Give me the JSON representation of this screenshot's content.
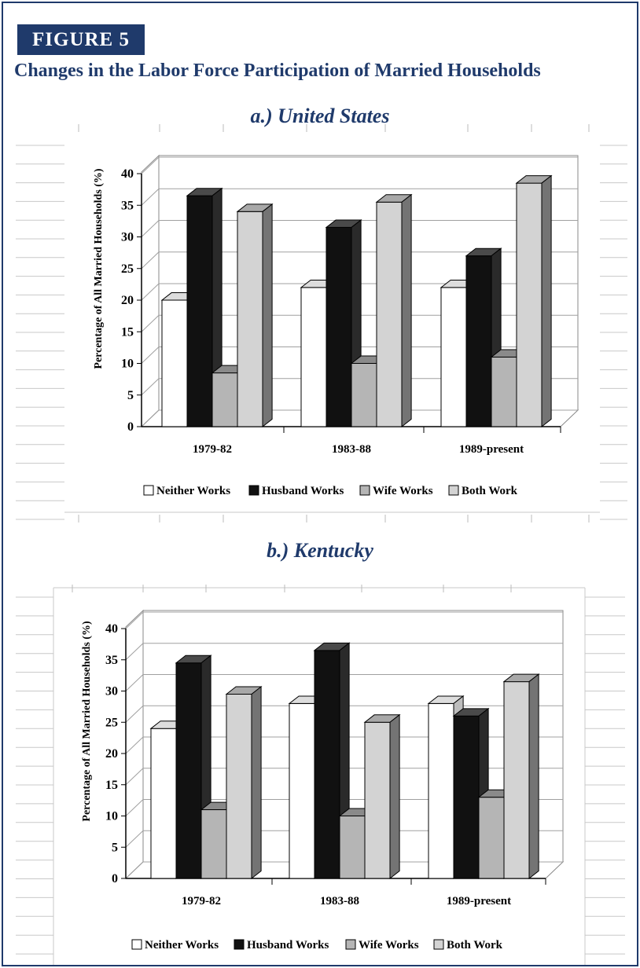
{
  "figure_label": "FIGURE 5",
  "main_title": "Changes in the Labor Force Participation of Married Households",
  "colors": {
    "navy": "#1f3a6b",
    "neither": "#ffffff",
    "husband": "#111111",
    "wife": "#b5b5b5",
    "both": "#d3d3d3"
  },
  "chart_data": [
    {
      "type": "bar",
      "title": "a.) United States",
      "ylabel": "Percentage of All Married Households (%)",
      "xlabel": "",
      "ylim": [
        0,
        40
      ],
      "yticks": [
        0,
        5,
        10,
        15,
        20,
        25,
        30,
        35,
        40
      ],
      "grid": true,
      "legend_position": "bottom",
      "categories": [
        "1979-82",
        "1983-88",
        "1989-present"
      ],
      "series": [
        {
          "name": "Neither Works",
          "values": [
            20,
            22,
            22
          ]
        },
        {
          "name": "Husband Works",
          "values": [
            36.5,
            31.5,
            27
          ]
        },
        {
          "name": "Wife Works",
          "values": [
            8.5,
            10,
            11
          ]
        },
        {
          "name": "Both Work",
          "values": [
            34,
            35.5,
            38.5
          ]
        }
      ]
    },
    {
      "type": "bar",
      "title": "b.) Kentucky",
      "ylabel": "Percentage of All Married Households (%)",
      "xlabel": "",
      "ylim": [
        0,
        40
      ],
      "yticks": [
        0,
        5,
        10,
        15,
        20,
        25,
        30,
        35,
        40
      ],
      "grid": true,
      "legend_position": "bottom",
      "categories": [
        "1979-82",
        "1983-88",
        "1989-present"
      ],
      "series": [
        {
          "name": "Neither Works",
          "values": [
            24,
            28,
            28
          ]
        },
        {
          "name": "Husband Works",
          "values": [
            34.5,
            36.5,
            26
          ]
        },
        {
          "name": "Wife Works",
          "values": [
            11,
            10,
            13
          ]
        },
        {
          "name": "Both Work",
          "values": [
            29.5,
            25,
            31.5
          ]
        }
      ]
    }
  ]
}
